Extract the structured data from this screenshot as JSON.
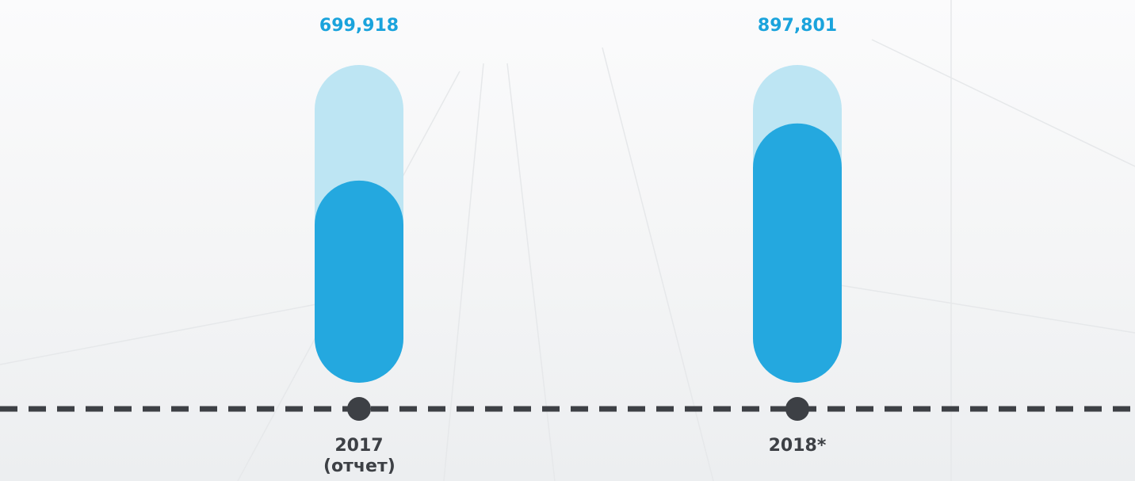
{
  "chart_data": {
    "type": "bar",
    "categories": [
      "2017 (отчет)",
      "2018*"
    ],
    "values": [
      699918,
      897801
    ],
    "value_labels": [
      "699,918",
      "897,801"
    ],
    "color": "#24a8df",
    "ylim": [
      0,
      1100000
    ]
  }
}
